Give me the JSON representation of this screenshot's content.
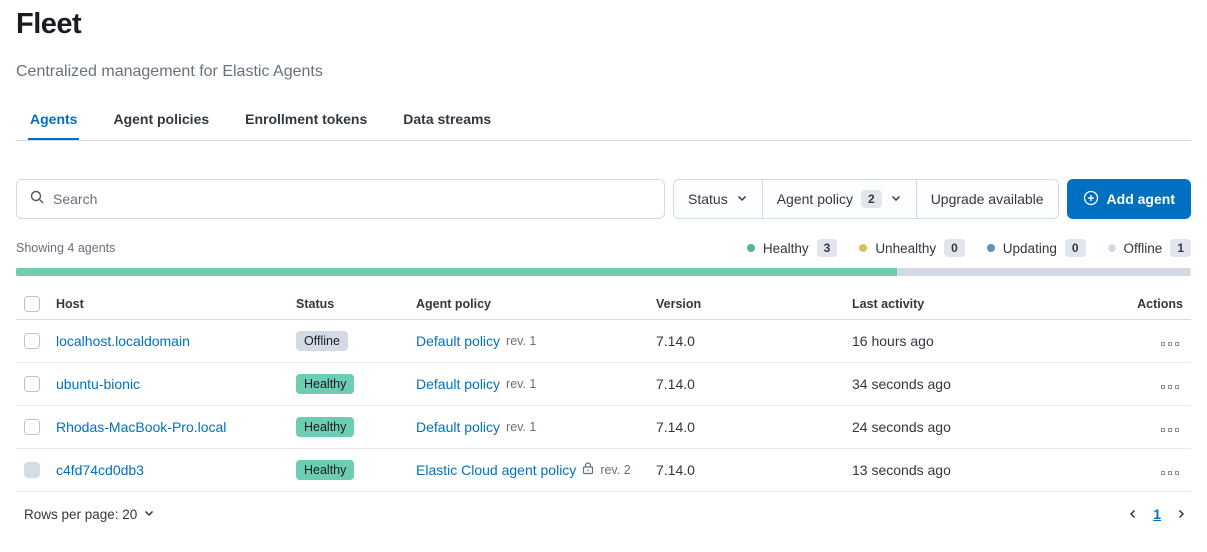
{
  "header": {
    "title": "Fleet",
    "subtitle": "Centralized management for Elastic Agents"
  },
  "tabs": [
    {
      "label": "Agents",
      "active": true
    },
    {
      "label": "Agent policies",
      "active": false
    },
    {
      "label": "Enrollment tokens",
      "active": false
    },
    {
      "label": "Data streams",
      "active": false
    }
  ],
  "toolbar": {
    "search": {
      "placeholder": "Search"
    },
    "status_filter": {
      "label": "Status"
    },
    "agent_policy_filter": {
      "label": "Agent policy",
      "count": "2"
    },
    "upgrade_filter": {
      "label": "Upgrade available"
    },
    "add_agent": {
      "label": "Add agent"
    }
  },
  "summary": {
    "showing": "Showing 4 agents",
    "legend": [
      {
        "label": "Healthy",
        "count": "3",
        "dot_color": "#54B399"
      },
      {
        "label": "Unhealthy",
        "count": "0",
        "dot_color": "#D6BF57"
      },
      {
        "label": "Updating",
        "count": "0",
        "dot_color": "#6092C0"
      },
      {
        "label": "Offline",
        "count": "1",
        "dot_color": "#D3DAE6"
      }
    ],
    "health_bar": {
      "healthy_percent": 75,
      "healthy_color": "#6DCCB1",
      "remainder_color": "#D3DAE6"
    }
  },
  "table": {
    "columns": {
      "host": "Host",
      "status": "Status",
      "policy": "Agent policy",
      "version": "Version",
      "last_activity": "Last activity",
      "actions": "Actions"
    },
    "rows": [
      {
        "host": "localhost.localdomain",
        "status": "Offline",
        "policy": "Default policy",
        "revision": "rev. 1",
        "version": "7.14.0",
        "last_activity": "16 hours ago"
      },
      {
        "host": "ubuntu-bionic",
        "status": "Healthy",
        "policy": "Default policy",
        "revision": "rev. 1",
        "version": "7.14.0",
        "last_activity": "34 seconds ago"
      },
      {
        "host": "Rhodas-MacBook-Pro.local",
        "status": "Healthy",
        "policy": "Default policy",
        "revision": "rev. 1",
        "version": "7.14.0",
        "last_activity": "24 seconds ago"
      },
      {
        "host": "c4fd74cd0db3",
        "status": "Healthy",
        "policy": "Elastic Cloud agent policy",
        "revision": "rev. 2",
        "version": "7.14.0",
        "last_activity": "13 seconds ago"
      }
    ]
  },
  "footer": {
    "rows_per_page": "Rows per page: 20",
    "page": "1"
  },
  "colors": {
    "primary": "#0071C2",
    "link": "#0071C2",
    "healthy_badge": "#6DCCB1",
    "offline_badge": "#D3DAE6",
    "divider": "#D3DAE6"
  }
}
